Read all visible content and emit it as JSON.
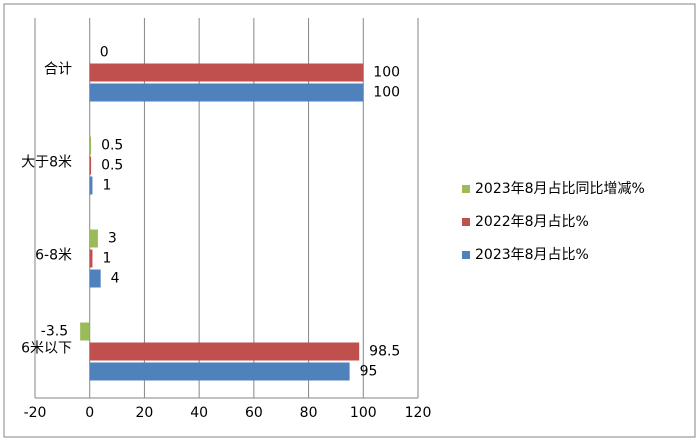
{
  "chart_data": {
    "type": "hbar",
    "categories": [
      "合计",
      "大于8米",
      "6-8米",
      "6米以下"
    ],
    "series": [
      {
        "name": "2023年8月占比同比增减%",
        "color": "#9bbb59",
        "values": [
          0,
          0.5,
          3,
          -3.5
        ]
      },
      {
        "name": "2022年8月占比%",
        "color": "#c0504d",
        "values": [
          100,
          0.5,
          1,
          98.5
        ]
      },
      {
        "name": "2023年8月占比%",
        "color": "#4f81bd",
        "values": [
          100,
          1,
          4,
          95
        ]
      }
    ],
    "xlim": [
      -20,
      120
    ],
    "xticks": [
      -20,
      0,
      20,
      40,
      60,
      80,
      100,
      120
    ],
    "grid": true,
    "legend": "right"
  }
}
